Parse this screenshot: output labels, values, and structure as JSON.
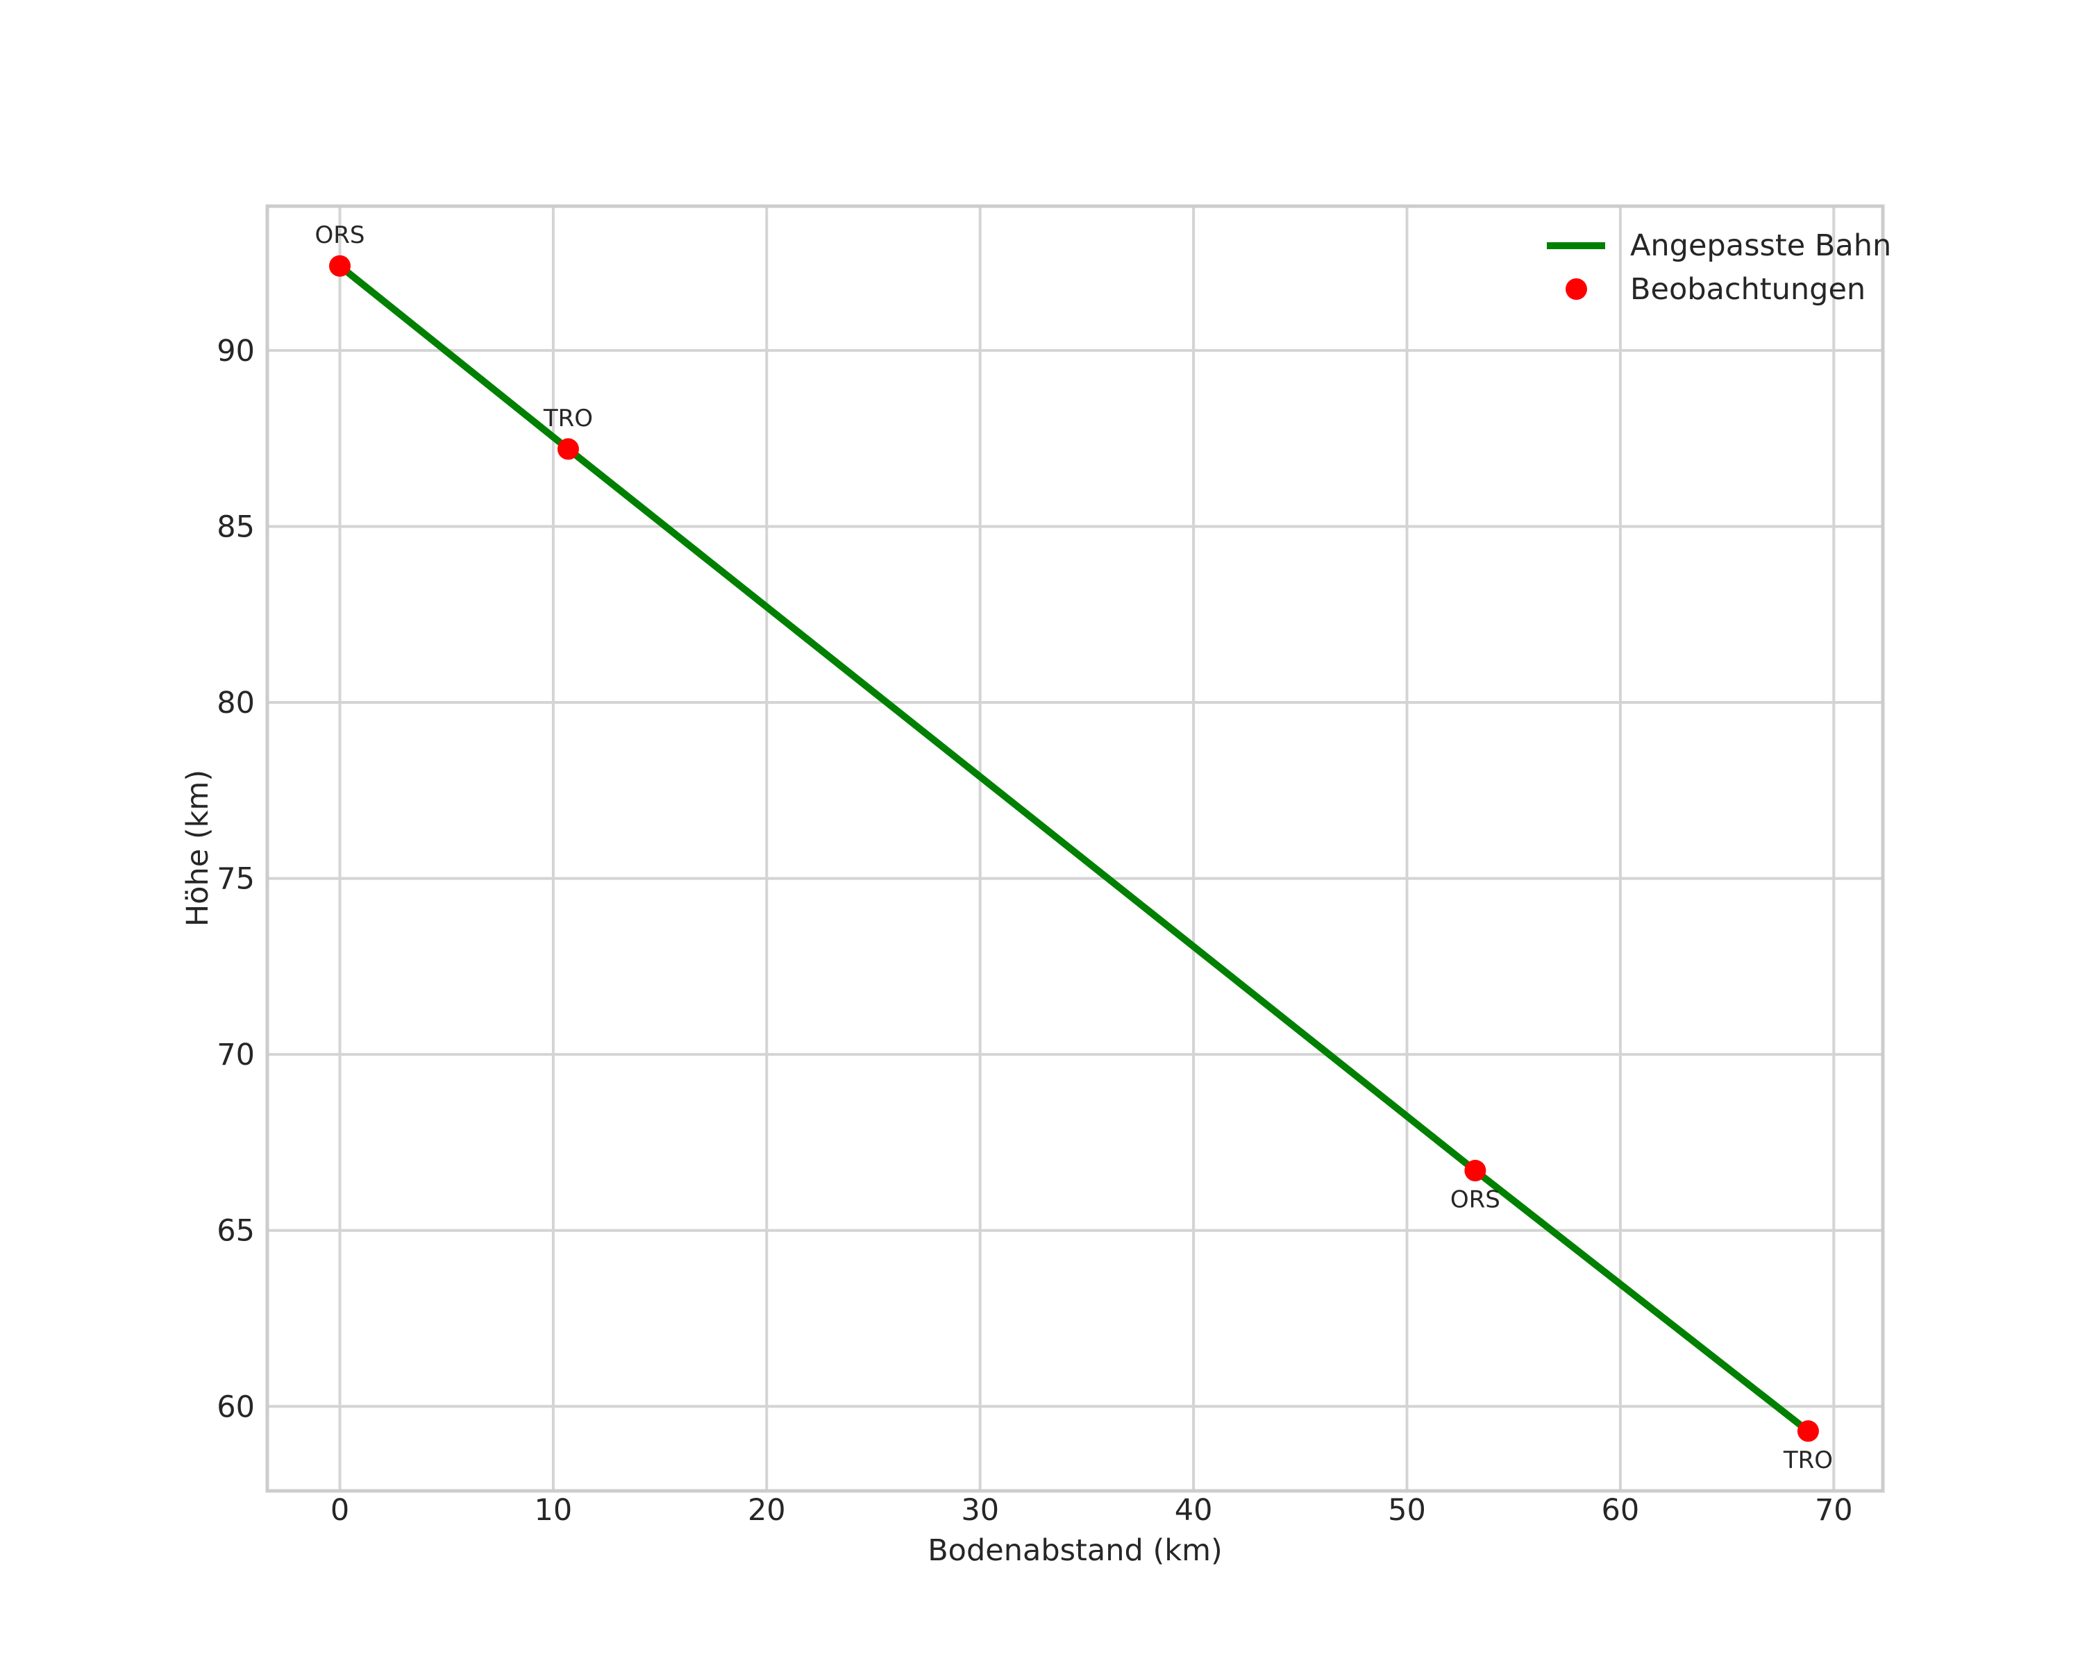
{
  "chart_data": {
    "type": "scatter",
    "title": "",
    "xlabel": "Bodenabstand (km)",
    "ylabel": "Höhe (km)",
    "xlim": [
      -3.4,
      72.3
    ],
    "ylim": [
      57.6,
      94.1
    ],
    "x_ticks": [
      0,
      10,
      20,
      30,
      40,
      50,
      60,
      70
    ],
    "y_ticks": [
      60,
      65,
      70,
      75,
      80,
      85,
      90
    ],
    "grid": true,
    "colors": {
      "line": "#008000",
      "marker": "#ff0000",
      "grid": "#d4d4d4",
      "frame": "#cccccc",
      "text": "#262626",
      "background": "#ffffff"
    },
    "series": [
      {
        "name": "Angepasste Bahn",
        "type": "line",
        "color": "#008000",
        "x": [
          0.0,
          10.7,
          53.2,
          68.8
        ],
        "y": [
          92.4,
          87.2,
          66.7,
          59.3
        ]
      },
      {
        "name": "Beobachtungen",
        "type": "scatter",
        "color": "#ff0000",
        "points": [
          {
            "x": 0.0,
            "y": 92.4,
            "label": "ORS",
            "label_position": "above"
          },
          {
            "x": 10.7,
            "y": 87.2,
            "label": "TRO",
            "label_position": "above"
          },
          {
            "x": 53.2,
            "y": 66.7,
            "label": "ORS",
            "label_position": "below"
          },
          {
            "x": 68.8,
            "y": 59.3,
            "label": "TRO",
            "label_position": "below"
          }
        ]
      }
    ],
    "legend": {
      "position": "upper right",
      "entries": [
        {
          "label": "Angepasste Bahn",
          "marker": "line",
          "color": "#008000"
        },
        {
          "label": "Beobachtungen",
          "marker": "dot",
          "color": "#ff0000"
        }
      ]
    }
  }
}
